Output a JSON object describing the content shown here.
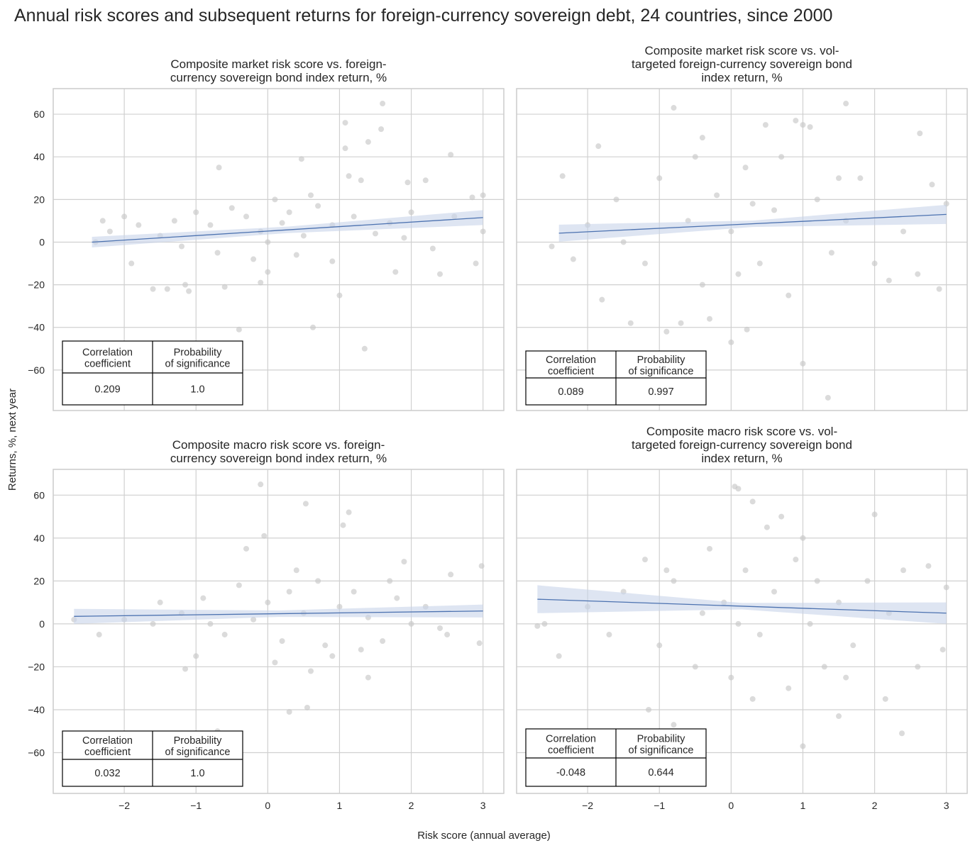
{
  "chart_data": {
    "title": "Annual risk scores and subsequent returns for foreign-currency sovereign debt, 24 countries, since 2000",
    "xlabel": "Risk score (annual average)",
    "ylabel": "Returns, %, next year",
    "colors": {
      "points": "#c8c8c8",
      "line": "#4c72b0",
      "band": "#c8d4ea",
      "grid": "#d0d0d0"
    },
    "xlim": [
      -2.99,
      3.29
    ],
    "ylim": [
      -79,
      72
    ],
    "xticks": [
      -2,
      -1,
      0,
      1,
      2,
      3
    ],
    "xtick_labels": [
      "−2",
      "−1",
      "0",
      "1",
      "2",
      "3"
    ],
    "yticks": [
      60,
      40,
      20,
      0,
      -20,
      -40,
      -60
    ],
    "ytick_labels": [
      "60",
      "40",
      "20",
      "0",
      "−20",
      "−40",
      "−60"
    ],
    "grid": true,
    "table_headers": [
      "Correlation\ncoefficient",
      "Probability\nof significance"
    ],
    "panels": [
      {
        "type": "scatter",
        "title": "Composite market risk score vs. foreign-\ncurrency sovereign bond index return, %",
        "correlation": "0.209",
        "probability": "1.0",
        "fit": {
          "x": [
            -2.45,
            3.0
          ],
          "y": [
            0,
            11.5
          ],
          "band": [
            2.5,
            3.5
          ]
        },
        "points": [
          [
            1.6,
            65
          ],
          [
            1.08,
            56
          ],
          [
            1.58,
            53
          ],
          [
            1.4,
            47
          ],
          [
            1.08,
            44
          ],
          [
            2.55,
            41
          ],
          [
            0.47,
            39
          ],
          [
            -0.68,
            35
          ],
          [
            1.13,
            31
          ],
          [
            2.2,
            29
          ],
          [
            1.3,
            29
          ],
          [
            1.95,
            28
          ],
          [
            -0.4,
            -41
          ],
          [
            0.63,
            -40
          ],
          [
            1.35,
            -50
          ],
          [
            1.0,
            -25
          ],
          [
            -1.4,
            -22
          ],
          [
            -1.6,
            -22
          ],
          [
            -1.15,
            -20
          ],
          [
            -1.1,
            -23
          ],
          [
            -0.1,
            -19
          ],
          [
            2.4,
            -15
          ],
          [
            1.78,
            -14
          ],
          [
            2.9,
            -10
          ],
          [
            3.0,
            5
          ],
          [
            3.0,
            22
          ],
          [
            2.85,
            21
          ],
          [
            0,
            -14
          ],
          [
            -0.6,
            -21
          ],
          [
            -2.4,
            0
          ],
          [
            -2.2,
            5
          ],
          [
            -2.0,
            12
          ],
          [
            -1.8,
            8
          ],
          [
            -1.5,
            3
          ],
          [
            -1.3,
            10
          ],
          [
            -1.0,
            14
          ],
          [
            -0.8,
            8
          ],
          [
            -0.5,
            16
          ],
          [
            -0.3,
            12
          ],
          [
            -0.1,
            5
          ],
          [
            0.1,
            20
          ],
          [
            0.2,
            9
          ],
          [
            0.3,
            14
          ],
          [
            0.5,
            3
          ],
          [
            0.7,
            17
          ],
          [
            0.9,
            8
          ],
          [
            1.2,
            12
          ],
          [
            1.5,
            4
          ],
          [
            1.7,
            9
          ],
          [
            2.0,
            14
          ],
          [
            2.3,
            -3
          ],
          [
            -1.9,
            -10
          ],
          [
            -0.7,
            -5
          ],
          [
            0.4,
            -6
          ],
          [
            0.9,
            -9
          ],
          [
            -2.3,
            10
          ],
          [
            -1.2,
            -2
          ],
          [
            0.0,
            0
          ],
          [
            0.6,
            22
          ],
          [
            1.9,
            2
          ],
          [
            2.6,
            12
          ],
          [
            -0.2,
            -8
          ]
        ]
      },
      {
        "type": "scatter",
        "title": "Composite market risk score vs. vol-\ntargeted foreign-currency sovereign bond\nindex return, %",
        "correlation": "0.089",
        "probability": "0.997",
        "fit": {
          "x": [
            -2.4,
            3.0
          ],
          "y": [
            4.2,
            13
          ],
          "band": [
            4,
            4.5
          ]
        },
        "points": [
          [
            -0.8,
            63
          ],
          [
            1.6,
            65
          ],
          [
            2.63,
            51
          ],
          [
            0.9,
            57
          ],
          [
            1.0,
            55
          ],
          [
            1.1,
            54
          ],
          [
            -1.85,
            45
          ],
          [
            0.48,
            55
          ],
          [
            -0.4,
            49
          ],
          [
            -1.8,
            -27
          ],
          [
            -0.9,
            -42
          ],
          [
            -0.7,
            -38
          ],
          [
            -0.3,
            -36
          ],
          [
            0.0,
            -47
          ],
          [
            0.22,
            -41
          ],
          [
            1.0,
            -57
          ],
          [
            1.35,
            -73
          ],
          [
            -1.4,
            -38
          ],
          [
            2.2,
            -18
          ],
          [
            2.9,
            -22
          ],
          [
            -2.35,
            31
          ],
          [
            -2.5,
            -2
          ],
          [
            3.0,
            18
          ],
          [
            2.8,
            27
          ],
          [
            -2.0,
            8
          ],
          [
            -1.6,
            20
          ],
          [
            -1.2,
            -10
          ],
          [
            -1.0,
            30
          ],
          [
            -0.6,
            10
          ],
          [
            -0.4,
            -20
          ],
          [
            -0.2,
            22
          ],
          [
            0.0,
            5
          ],
          [
            0.2,
            35
          ],
          [
            0.4,
            -10
          ],
          [
            0.6,
            15
          ],
          [
            0.8,
            -25
          ],
          [
            1.2,
            20
          ],
          [
            1.4,
            -5
          ],
          [
            1.6,
            10
          ],
          [
            1.8,
            30
          ],
          [
            2.0,
            -10
          ],
          [
            2.4,
            5
          ],
          [
            2.6,
            -15
          ],
          [
            -1.5,
            0
          ],
          [
            -0.5,
            40
          ],
          [
            0.3,
            18
          ],
          [
            0.7,
            40
          ],
          [
            1.5,
            30
          ],
          [
            -2.2,
            -8
          ],
          [
            0.1,
            -15
          ]
        ]
      },
      {
        "type": "scatter",
        "title": "Composite macro risk score vs. foreign-\ncurrency sovereign bond index return, %",
        "correlation": "0.032",
        "probability": "1.0",
        "fit": {
          "x": [
            -2.7,
            3.0
          ],
          "y": [
            3.5,
            6
          ],
          "band": [
            3.5,
            3
          ]
        },
        "points": [
          [
            -0.1,
            65
          ],
          [
            0.53,
            56
          ],
          [
            1.13,
            52
          ],
          [
            1.05,
            46
          ],
          [
            -0.05,
            41
          ],
          [
            0.3,
            -41
          ],
          [
            0.55,
            -39
          ],
          [
            -1.15,
            -21
          ],
          [
            2.95,
            -9
          ],
          [
            2.98,
            27
          ],
          [
            2.55,
            23
          ],
          [
            -2.7,
            2
          ],
          [
            -2.35,
            -5
          ],
          [
            1.9,
            29
          ],
          [
            1.4,
            -25
          ],
          [
            0.6,
            -22
          ],
          [
            -0.7,
            -50
          ],
          [
            -2.0,
            2
          ],
          [
            -1.5,
            10
          ],
          [
            -1.2,
            5
          ],
          [
            -0.9,
            12
          ],
          [
            -0.6,
            -5
          ],
          [
            -0.4,
            18
          ],
          [
            -0.2,
            2
          ],
          [
            0,
            10
          ],
          [
            0.2,
            -8
          ],
          [
            0.3,
            15
          ],
          [
            0.5,
            5
          ],
          [
            0.7,
            20
          ],
          [
            0.8,
            -10
          ],
          [
            1.0,
            8
          ],
          [
            1.2,
            15
          ],
          [
            1.4,
            3
          ],
          [
            1.6,
            -8
          ],
          [
            1.8,
            12
          ],
          [
            2.0,
            0
          ],
          [
            2.2,
            8
          ],
          [
            2.5,
            -5
          ],
          [
            -1.0,
            -15
          ],
          [
            -0.3,
            35
          ],
          [
            0.1,
            -18
          ],
          [
            0.9,
            -15
          ],
          [
            1.7,
            20
          ],
          [
            2.4,
            -2
          ],
          [
            -0.8,
            0
          ],
          [
            0.4,
            25
          ],
          [
            1.3,
            -12
          ],
          [
            -1.6,
            0
          ]
        ]
      },
      {
        "type": "scatter",
        "title": "Composite macro risk score vs. vol-\ntargeted foreign-currency sovereign bond\nindex return, %",
        "correlation": "-0.048",
        "probability": "0.644",
        "fit": {
          "x": [
            -2.7,
            3.0
          ],
          "y": [
            11.5,
            5
          ],
          "band": [
            6.5,
            5
          ]
        },
        "points": [
          [
            0.05,
            64
          ],
          [
            0.1,
            63
          ],
          [
            0.3,
            57
          ],
          [
            2.0,
            51
          ],
          [
            2.38,
            -51
          ],
          [
            1.0,
            -57
          ],
          [
            -1.15,
            -40
          ],
          [
            -0.8,
            -47
          ],
          [
            1.5,
            -43
          ],
          [
            2.15,
            -35
          ],
          [
            2.95,
            -12
          ],
          [
            -2.7,
            -1
          ],
          [
            -2.6,
            0
          ],
          [
            -2.4,
            -15
          ],
          [
            3.0,
            17
          ],
          [
            2.75,
            27
          ],
          [
            -1.5,
            15
          ],
          [
            -1.2,
            30
          ],
          [
            -1.0,
            -10
          ],
          [
            -0.8,
            20
          ],
          [
            -0.5,
            -20
          ],
          [
            -0.3,
            35
          ],
          [
            -0.1,
            10
          ],
          [
            0.0,
            -25
          ],
          [
            0.2,
            25
          ],
          [
            0.4,
            -5
          ],
          [
            0.5,
            45
          ],
          [
            0.6,
            15
          ],
          [
            0.8,
            -30
          ],
          [
            0.9,
            30
          ],
          [
            1.1,
            0
          ],
          [
            1.2,
            20
          ],
          [
            1.3,
            -20
          ],
          [
            1.5,
            10
          ],
          [
            1.7,
            -10
          ],
          [
            1.9,
            20
          ],
          [
            2.2,
            5
          ],
          [
            2.4,
            25
          ],
          [
            -2.0,
            8
          ],
          [
            -1.7,
            -5
          ],
          [
            0.3,
            -35
          ],
          [
            0.7,
            50
          ],
          [
            1.0,
            40
          ],
          [
            -0.4,
            5
          ],
          [
            0.1,
            0
          ],
          [
            1.6,
            -25
          ],
          [
            -0.9,
            25
          ],
          [
            2.6,
            -20
          ]
        ]
      }
    ]
  }
}
